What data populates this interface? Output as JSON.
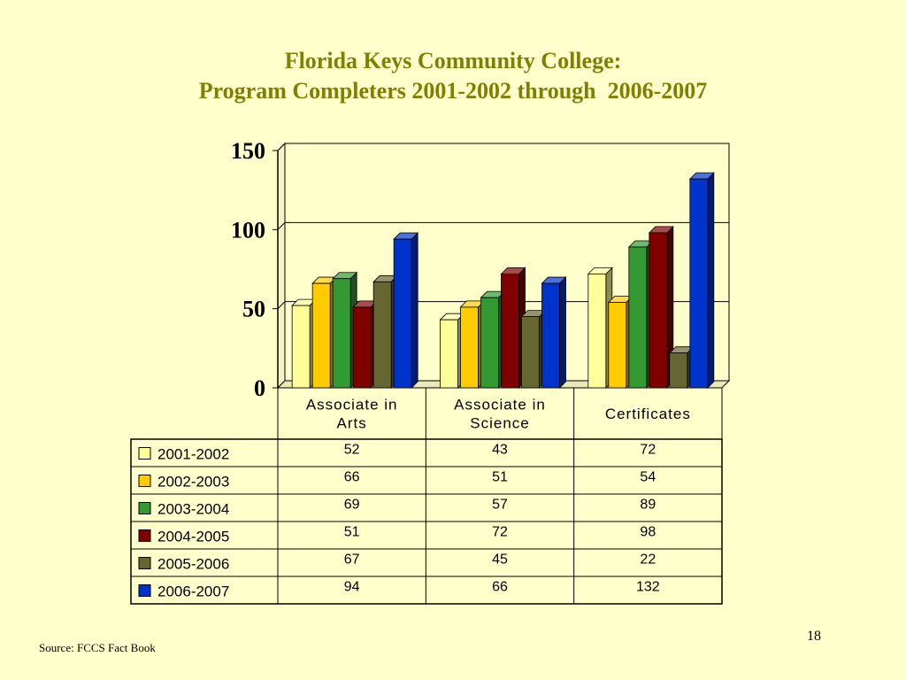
{
  "slide": {
    "title_line1": "Florida Keys Community College:",
    "title_line2": "Program Completers 2001-2002 through  2006-2007",
    "source": "Source: FCCS Fact Book",
    "page_number": "18"
  },
  "chart_data": {
    "type": "bar",
    "title": "",
    "xlabel": "",
    "ylabel": "",
    "ylim": [
      0,
      150
    ],
    "yticks": [
      "0",
      "50",
      "100",
      "150"
    ],
    "grid": true,
    "legend": "data-table",
    "categories": [
      "Associate in Arts",
      "Associate in Science",
      "Certificates"
    ],
    "category_lines": [
      [
        "Associate in",
        "Arts"
      ],
      [
        "Associate in",
        "Science"
      ],
      [
        "Certificates"
      ]
    ],
    "series": [
      {
        "name": "2001-2002",
        "color": "#ffff99",
        "values": [
          52,
          43,
          72
        ]
      },
      {
        "name": "2002-2003",
        "color": "#ffcc00",
        "values": [
          66,
          51,
          54
        ]
      },
      {
        "name": "2003-2004",
        "color": "#339933",
        "values": [
          69,
          57,
          89
        ]
      },
      {
        "name": "2004-2005",
        "color": "#800000",
        "values": [
          51,
          72,
          98
        ]
      },
      {
        "name": "2005-2006",
        "color": "#666633",
        "values": [
          67,
          45,
          22
        ]
      },
      {
        "name": "2006-2007",
        "color": "#0033cc",
        "values": [
          94,
          66,
          132
        ]
      }
    ]
  }
}
